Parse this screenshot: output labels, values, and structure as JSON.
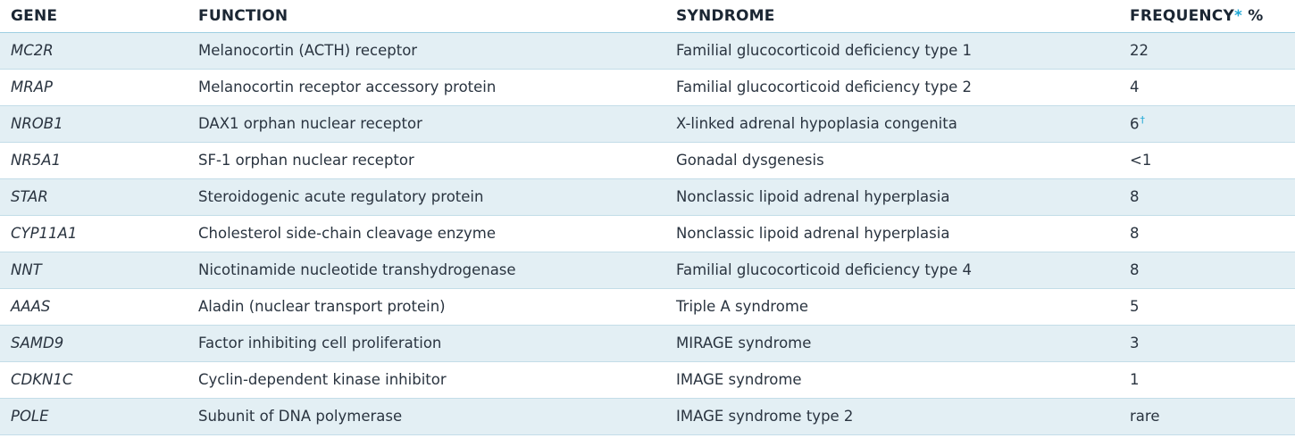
{
  "headers": {
    "gene": "GENE",
    "function": "FUNCTION",
    "syndrome": "SYNDROME",
    "frequency": "FREQUENCY",
    "frequency_marker": "*",
    "frequency_unit": " %"
  },
  "rows": [
    {
      "gene": "MC2R",
      "function": "Melanocortin (ACTH) receptor",
      "syndrome": "Familial glucocorticoid deficiency type 1",
      "frequency": "22",
      "note": ""
    },
    {
      "gene": "MRAP",
      "function": "Melanocortin receptor accessory protein",
      "syndrome": "Familial glucocorticoid deficiency type 2",
      "frequency": "4",
      "note": ""
    },
    {
      "gene": "NROB1",
      "function": "DAX1 orphan nuclear receptor",
      "syndrome": "X-linked adrenal hypoplasia congenita",
      "frequency": "6",
      "note": "†"
    },
    {
      "gene": "NR5A1",
      "function": "SF-1 orphan nuclear receptor",
      "syndrome": "Gonadal dysgenesis",
      "frequency": "<1",
      "note": ""
    },
    {
      "gene": "STAR",
      "function": "Steroidogenic acute regulatory protein",
      "syndrome": "Nonclassic lipoid adrenal hyperplasia",
      "frequency": "8",
      "note": ""
    },
    {
      "gene": "CYP11A1",
      "function": "Cholesterol side-chain cleavage enzyme",
      "syndrome": "Nonclassic lipoid adrenal hyperplasia",
      "frequency": "8",
      "note": ""
    },
    {
      "gene": "NNT",
      "function": "Nicotinamide nucleotide transhydrogenase",
      "syndrome": "Familial glucocorticoid deficiency type 4",
      "frequency": "8",
      "note": ""
    },
    {
      "gene": "AAAS",
      "function": "Aladin (nuclear transport protein)",
      "syndrome": "Triple A syndrome",
      "frequency": "5",
      "note": ""
    },
    {
      "gene": "SAMD9",
      "function": "Factor inhibiting cell proliferation",
      "syndrome": "MIRAGE syndrome",
      "frequency": "3",
      "note": ""
    },
    {
      "gene": "CDKN1C",
      "function": "Cyclin-dependent kinase inhibitor",
      "syndrome": "IMAGE syndrome",
      "frequency": "1",
      "note": ""
    },
    {
      "gene": "POLE",
      "function": "Subunit of DNA polymerase",
      "syndrome": "IMAGE syndrome type 2",
      "frequency": "rare",
      "note": ""
    }
  ],
  "colors": {
    "shaded_row": "#e3eff4",
    "accent": "#1ea8d6",
    "header_text": "#1b2633",
    "body_text": "#2a3440"
  }
}
